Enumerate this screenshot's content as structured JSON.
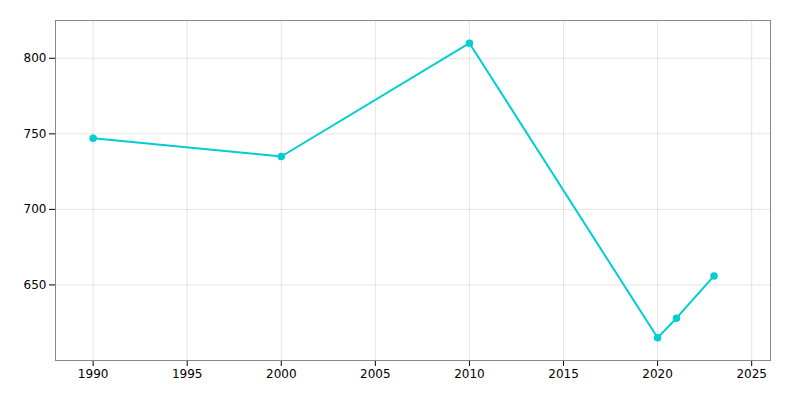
{
  "chart_data": {
    "type": "line",
    "x": [
      1990,
      2000,
      2010,
      2020,
      2021,
      2023
    ],
    "values": [
      747,
      735,
      810,
      615,
      628,
      656
    ],
    "color": "#00CED1",
    "marker": "circle",
    "xlim": [
      1988,
      2026
    ],
    "ylim": [
      600,
      825
    ],
    "xticks": [
      1990,
      1995,
      2000,
      2005,
      2010,
      2015,
      2020,
      2025
    ],
    "yticks": [
      650,
      700,
      750,
      800
    ],
    "grid": true
  }
}
